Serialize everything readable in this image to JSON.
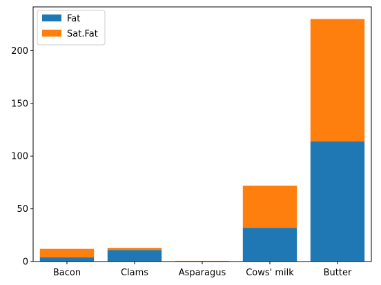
{
  "chart_data": {
    "type": "bar",
    "stacked": true,
    "title": "",
    "xlabel": "",
    "ylabel": "",
    "categories": [
      "Bacon",
      "Clams",
      "Asparagus",
      "Cows' milk",
      "Butter"
    ],
    "series": [
      {
        "name": "Fat",
        "color": "#1f77b4",
        "values": [
          4,
          11,
          0.5,
          32,
          114
        ]
      },
      {
        "name": "Sat.Fat",
        "color": "#ff7f0e",
        "values": [
          8,
          2,
          0.2,
          40,
          116
        ]
      }
    ],
    "ylim": [
      0,
      241.5
    ],
    "yticks": [
      0,
      50,
      100,
      150,
      200
    ],
    "grid": false,
    "legend_position": "top-left"
  }
}
